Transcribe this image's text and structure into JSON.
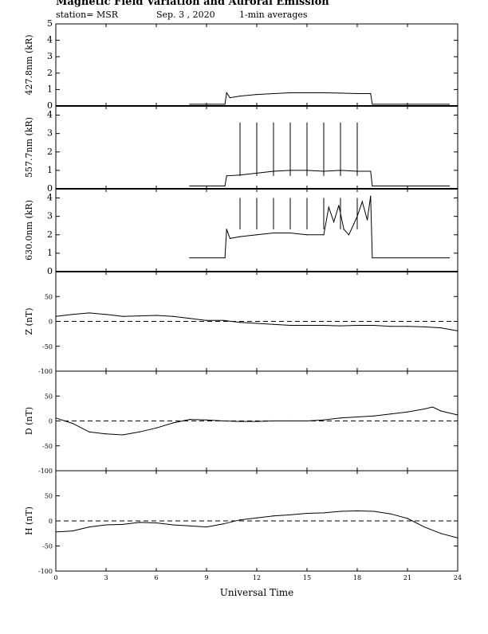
{
  "header": {
    "title": "Magnetic Field Variation and Auroral Emission",
    "station": "station= MSR",
    "date": "Sep. 3  , 2020",
    "averaging": "1-min averages"
  },
  "chart_data": [
    {
      "type": "line",
      "ylabel": "427.8nm (kR)",
      "ylim": [
        0,
        5
      ],
      "yticks": [
        0,
        1,
        2,
        3,
        4,
        5
      ],
      "x": [
        8.0,
        10.1,
        10.2,
        10.4,
        11.0,
        12.0,
        13.0,
        14.0,
        15.0,
        16.0,
        17.0,
        18.0,
        18.5,
        18.8,
        18.9,
        23.5
      ],
      "series": [
        {
          "values": [
            0.1,
            0.1,
            0.8,
            0.5,
            0.6,
            0.7,
            0.75,
            0.8,
            0.8,
            0.8,
            0.78,
            0.75,
            0.75,
            0.75,
            0.1,
            0.1
          ]
        }
      ],
      "spikes": [],
      "dashed_zero": false
    },
    {
      "type": "line",
      "ylabel": "557.7nm (kR)",
      "ylim": [
        0,
        4.5
      ],
      "yticks": [
        0,
        1,
        2,
        3,
        4
      ],
      "x": [
        8.0,
        10.1,
        10.2,
        11.0,
        12.0,
        13.0,
        14.0,
        15.0,
        16.0,
        17.0,
        18.0,
        18.8,
        18.9,
        23.5
      ],
      "series": [
        {
          "values": [
            0.15,
            0.15,
            0.7,
            0.75,
            0.85,
            0.95,
            1.0,
            1.0,
            0.95,
            1.0,
            0.95,
            0.95,
            0.15,
            0.15
          ]
        }
      ],
      "spikes": [
        {
          "x": 11.0,
          "value": 3.6
        },
        {
          "x": 12.0,
          "value": 3.6
        },
        {
          "x": 13.0,
          "value": 3.6
        },
        {
          "x": 14.0,
          "value": 3.6
        },
        {
          "x": 15.0,
          "value": 3.6
        },
        {
          "x": 16.0,
          "value": 3.6
        },
        {
          "x": 17.0,
          "value": 3.6
        },
        {
          "x": 18.0,
          "value": 3.6
        }
      ],
      "dashed_zero": false
    },
    {
      "type": "line",
      "ylabel": "630.0nm (kR)",
      "ylim": [
        0,
        4.5
      ],
      "yticks": [
        0,
        1,
        2,
        3,
        4
      ],
      "x": [
        8.0,
        10.1,
        10.2,
        10.4,
        11.0,
        12.0,
        13.0,
        14.0,
        15.0,
        16.0,
        16.3,
        16.6,
        16.9,
        17.2,
        17.5,
        17.8,
        18.0,
        18.3,
        18.6,
        18.8,
        18.9,
        23.5
      ],
      "series": [
        {
          "values": [
            0.75,
            0.75,
            2.3,
            1.8,
            1.9,
            2.0,
            2.1,
            2.1,
            2.0,
            2.0,
            3.5,
            2.7,
            3.6,
            2.3,
            2.0,
            2.6,
            3.0,
            3.8,
            2.8,
            4.1,
            0.75,
            0.75
          ]
        }
      ],
      "spikes": [
        {
          "x": 11.0,
          "value": 4.0
        },
        {
          "x": 12.0,
          "value": 4.0
        },
        {
          "x": 13.0,
          "value": 4.0
        },
        {
          "x": 14.0,
          "value": 4.0
        },
        {
          "x": 15.0,
          "value": 4.0
        },
        {
          "x": 16.0,
          "value": 4.0
        },
        {
          "x": 17.0,
          "value": 4.0
        },
        {
          "x": 18.0,
          "value": 4.0
        }
      ],
      "dashed_zero": false
    },
    {
      "type": "line",
      "ylabel": "Z (nT)",
      "ylim": [
        -100,
        100
      ],
      "yticks": [
        -100,
        -50,
        0,
        50
      ],
      "x": [
        0,
        1,
        2,
        3,
        4,
        5,
        6,
        7,
        8,
        9,
        10,
        11,
        12,
        13,
        14,
        15,
        16,
        17,
        18,
        19,
        20,
        21,
        22,
        23,
        24
      ],
      "series": [
        {
          "values": [
            10,
            14,
            17,
            14,
            10,
            11,
            12,
            10,
            6,
            2,
            2,
            -2,
            -4,
            -6,
            -8,
            -8,
            -8,
            -9,
            -8,
            -8,
            -10,
            -10,
            -11,
            -13,
            -19
          ]
        }
      ],
      "spikes": [],
      "dashed_zero": true
    },
    {
      "type": "line",
      "ylabel": "D (nT)",
      "ylim": [
        -100,
        100
      ],
      "yticks": [
        -100,
        -50,
        0,
        50
      ],
      "x": [
        0,
        1,
        2,
        3,
        4,
        5,
        6,
        7,
        8,
        9,
        10,
        11,
        12,
        13,
        14,
        15,
        16,
        17,
        18,
        19,
        20,
        21,
        22,
        22.5,
        23,
        24
      ],
      "series": [
        {
          "values": [
            6,
            -5,
            -22,
            -26,
            -28,
            -22,
            -14,
            -4,
            3,
            2,
            0,
            -1,
            -1,
            0,
            0,
            0,
            2,
            6,
            8,
            10,
            14,
            18,
            24,
            28,
            20,
            12
          ]
        }
      ],
      "spikes": [],
      "dashed_zero": true
    },
    {
      "type": "line",
      "ylabel": "H (nT)",
      "ylim": [
        -100,
        100
      ],
      "yticks": [
        -100,
        -50,
        0,
        50
      ],
      "x": [
        0,
        1,
        2,
        3,
        4,
        5,
        6,
        7,
        8,
        9,
        10,
        11,
        12,
        13,
        14,
        15,
        16,
        17,
        18,
        19,
        20,
        21,
        22,
        23,
        24
      ],
      "series": [
        {
          "values": [
            -22,
            -20,
            -12,
            -8,
            -7,
            -3,
            -4,
            -8,
            -10,
            -12,
            -6,
            2,
            6,
            10,
            12,
            15,
            16,
            19,
            20,
            19,
            14,
            5,
            -12,
            -25,
            -34
          ]
        }
      ],
      "spikes": [],
      "dashed_zero": true
    }
  ],
  "xaxis": {
    "label": "Universal Time",
    "range": [
      0,
      24
    ],
    "ticks": [
      0,
      3,
      6,
      9,
      12,
      15,
      18,
      21,
      24
    ]
  },
  "colors": {
    "line": "#000000",
    "background": "#ffffff"
  }
}
